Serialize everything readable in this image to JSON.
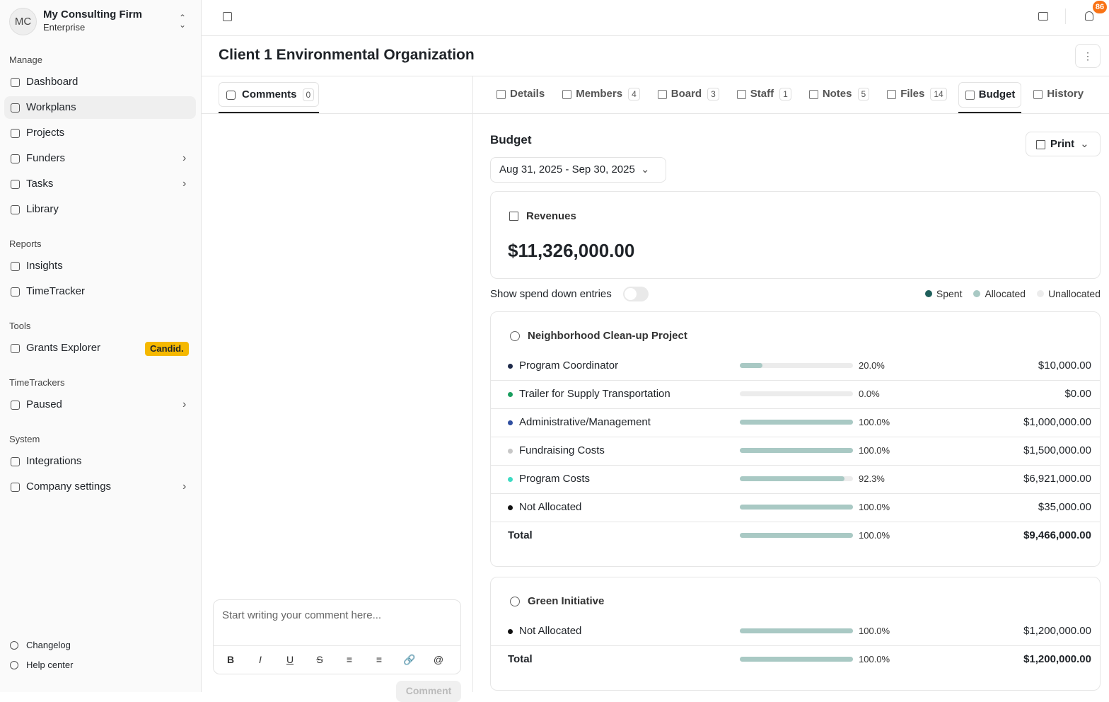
{
  "sidebar": {
    "org": {
      "initials": "MC",
      "name": "My Consulting Firm",
      "plan": "Enterprise"
    },
    "sections": [
      {
        "title": "Manage",
        "items": [
          {
            "label": "Dashboard"
          },
          {
            "label": "Workplans",
            "active": true
          },
          {
            "label": "Projects"
          },
          {
            "label": "Funders",
            "expandable": true
          },
          {
            "label": "Tasks",
            "expandable": true
          },
          {
            "label": "Library"
          }
        ]
      },
      {
        "title": "Reports",
        "items": [
          {
            "label": "Insights"
          },
          {
            "label": "TimeTracker"
          }
        ]
      },
      {
        "title": "Tools",
        "items": [
          {
            "label": "Grants Explorer",
            "badge": "Candid."
          }
        ]
      },
      {
        "title": "TimeTrackers",
        "items": [
          {
            "label": "Paused",
            "expandable": true
          }
        ]
      },
      {
        "title": "System",
        "items": [
          {
            "label": "Integrations"
          },
          {
            "label": "Company settings",
            "expandable": true
          }
        ]
      }
    ],
    "footer": [
      "Changelog",
      "Help center"
    ]
  },
  "header": {
    "notifications": 86
  },
  "page": {
    "title": "Client 1 Environmental Organization"
  },
  "comments": {
    "tab": {
      "label": "Comments",
      "count": 0
    },
    "placeholder": "Start writing your comment here...",
    "submit": "Comment"
  },
  "tabs": [
    {
      "label": "Details"
    },
    {
      "label": "Members",
      "count": 4
    },
    {
      "label": "Board",
      "count": 3
    },
    {
      "label": "Staff",
      "count": 1
    },
    {
      "label": "Notes",
      "count": 5
    },
    {
      "label": "Files",
      "count": 14
    },
    {
      "label": "Budget",
      "active": true
    },
    {
      "label": "History"
    }
  ],
  "budget": {
    "title": "Budget",
    "print": "Print",
    "date_range": "Aug 31, 2025 - Sep 30, 2025",
    "revenues": {
      "label": "Revenues",
      "amount": "$11,326,000.00"
    },
    "toggle": "Show spend down entries",
    "legend": [
      {
        "name": "Spent",
        "color": "#1f5f5b"
      },
      {
        "name": "Allocated",
        "color": "#a9c9c4"
      },
      {
        "name": "Unallocated",
        "color": "#ececec"
      }
    ],
    "projects": [
      {
        "name": "Neighborhood Clean-up Project",
        "rows": [
          {
            "label": "Program Coordinator",
            "color": "#1e2a4a",
            "value": 20,
            "value_label": "20.0%",
            "amount": "$10,000.00"
          },
          {
            "label": "Trailer for Supply Transportation",
            "color": "#1a9e5f",
            "value": 0,
            "value_label": "0.0%",
            "amount": "$0.00"
          },
          {
            "label": "Administrative/Management",
            "color": "#2f4fa0",
            "value": 100,
            "value_label": "100.0%",
            "amount": "$1,000,000.00"
          },
          {
            "label": "Fundraising Costs",
            "color": "#c7c7c7",
            "value": 100,
            "value_label": "100.0%",
            "amount": "$1,500,000.00"
          },
          {
            "label": "Program Costs",
            "color": "#3ddbc3",
            "value": 92.3,
            "value_label": "92.3%",
            "amount": "$6,921,000.00"
          },
          {
            "label": "Not Allocated",
            "color": "#111111",
            "value": 100,
            "value_label": "100.0%",
            "amount": "$35,000.00"
          }
        ],
        "total": {
          "label": "Total",
          "value": 100,
          "value_label": "100.0%",
          "amount": "$9,466,000.00"
        }
      },
      {
        "name": "Green Initiative",
        "rows": [
          {
            "label": "Not Allocated",
            "color": "#111111",
            "value": 100,
            "value_label": "100.0%",
            "amount": "$1,200,000.00"
          }
        ],
        "total": {
          "label": "Total",
          "value": 100,
          "value_label": "100.0%",
          "amount": "$1,200,000.00"
        }
      }
    ]
  }
}
